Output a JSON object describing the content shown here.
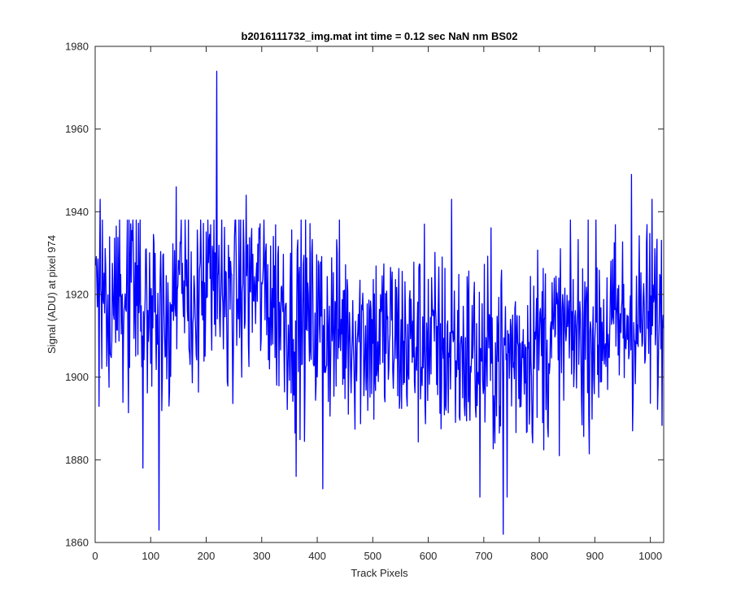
{
  "window": {
    "background": "#ffffff"
  },
  "chart_data": {
    "type": "line",
    "title": "b2016111732_img.mat int time = 0.12 sec  NaN nm BS02",
    "xlabel": "Track Pixels",
    "ylabel": "Signal (ADU) at pixel 974",
    "xlim": [
      0,
      1024
    ],
    "ylim": [
      1860,
      1980
    ],
    "xticks": [
      0,
      100,
      200,
      300,
      400,
      500,
      600,
      700,
      800,
      900,
      1000
    ],
    "yticks": [
      1860,
      1880,
      1900,
      1920,
      1940,
      1960,
      1980
    ],
    "grid": false,
    "legend": "none",
    "box": true,
    "series": [
      {
        "color": "#0000ff",
        "n_points": 1024,
        "x_start": 1,
        "x_step": 1,
        "baseline_anchors": [
          [
            1,
            1917
          ],
          [
            150,
            1918
          ],
          [
            230,
            1921
          ],
          [
            300,
            1922
          ],
          [
            350,
            1915
          ],
          [
            500,
            1910
          ],
          [
            700,
            1905
          ],
          [
            800,
            1908
          ],
          [
            900,
            1912
          ],
          [
            1024,
            1914
          ]
        ],
        "noise_amplitude_approx": 12,
        "extremes": [
          {
            "x": 9,
            "y": 1943
          },
          {
            "x": 86,
            "y": 1878
          },
          {
            "x": 115,
            "y": 1863
          },
          {
            "x": 146,
            "y": 1946
          },
          {
            "x": 219,
            "y": 1974
          },
          {
            "x": 272,
            "y": 1944
          },
          {
            "x": 362,
            "y": 1876
          },
          {
            "x": 410,
            "y": 1873
          },
          {
            "x": 593,
            "y": 1937
          },
          {
            "x": 642,
            "y": 1943
          },
          {
            "x": 693,
            "y": 1871
          },
          {
            "x": 735,
            "y": 1862
          },
          {
            "x": 742,
            "y": 1871
          },
          {
            "x": 966,
            "y": 1949
          },
          {
            "x": 1003,
            "y": 1943
          }
        ]
      }
    ]
  }
}
